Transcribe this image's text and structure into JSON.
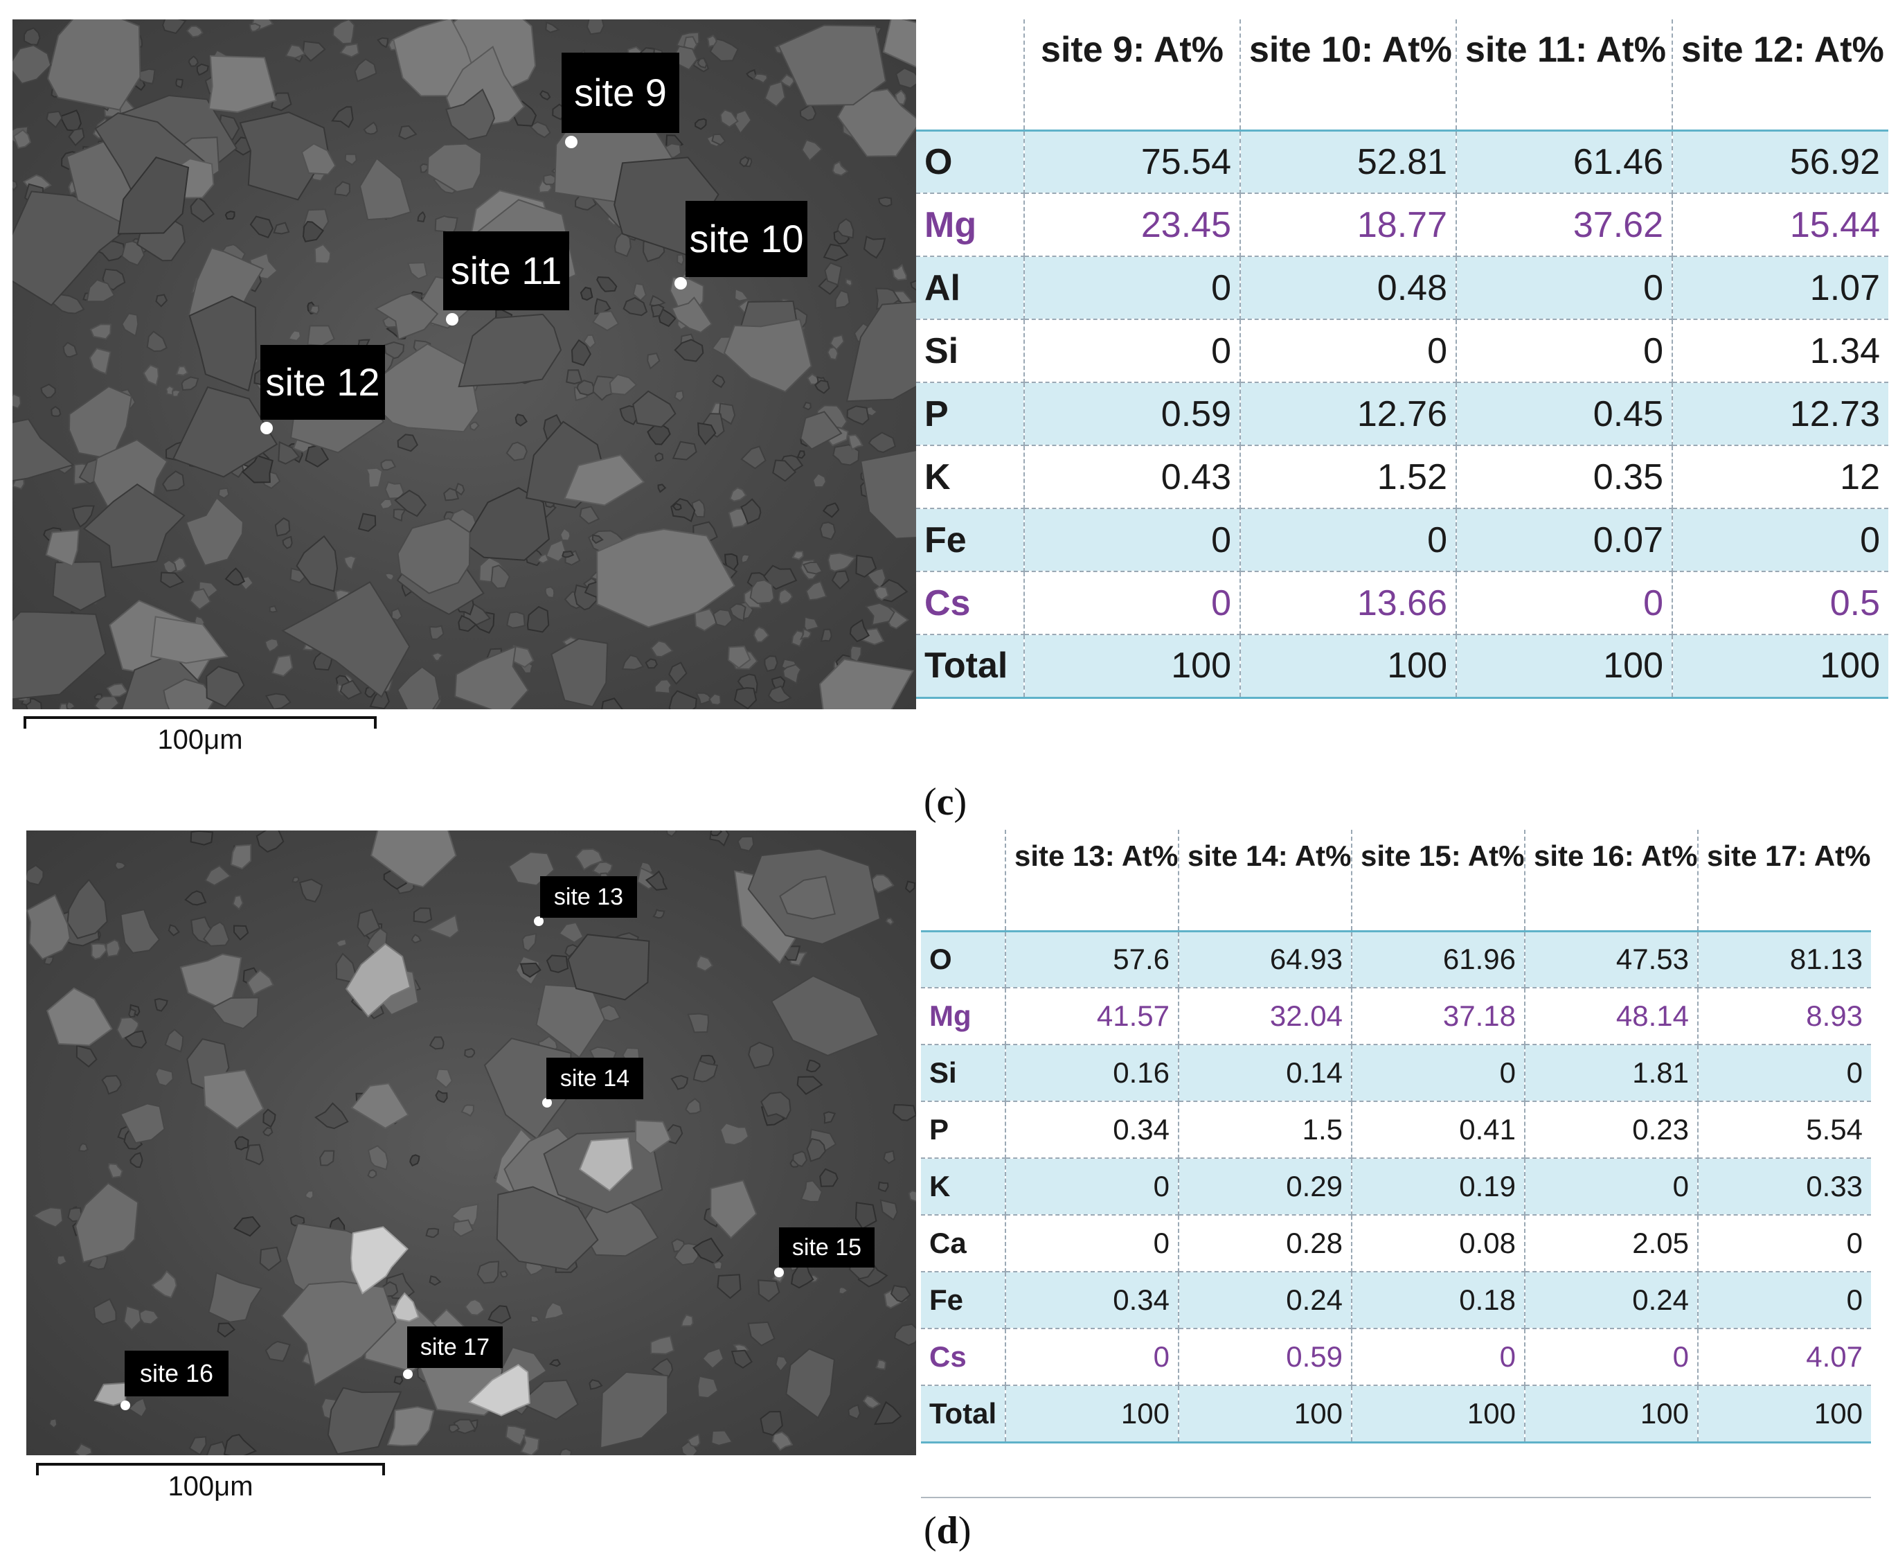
{
  "panel_c": {
    "label": "c",
    "scale_bar": "100μm",
    "sites": [
      "site 9",
      "site 10",
      "site 11",
      "site 12"
    ],
    "table": {
      "columns": [
        "",
        "site 9: At%",
        "site 10: At%",
        "site 11: At%",
        "site 12: At%"
      ],
      "rows": [
        {
          "element": "O",
          "values": [
            "75.54",
            "52.81",
            "61.46",
            "56.92"
          ]
        },
        {
          "element": "Mg",
          "values": [
            "23.45",
            "18.77",
            "37.62",
            "15.44"
          ]
        },
        {
          "element": "Al",
          "values": [
            "0",
            "0.48",
            "0",
            "1.07"
          ]
        },
        {
          "element": "Si",
          "values": [
            "0",
            "0",
            "0",
            "1.34"
          ]
        },
        {
          "element": "P",
          "values": [
            "0.59",
            "12.76",
            "0.45",
            "12.73"
          ]
        },
        {
          "element": "K",
          "values": [
            "0.43",
            "1.52",
            "0.35",
            "12"
          ]
        },
        {
          "element": "Fe",
          "values": [
            "0",
            "0",
            "0.07",
            "0"
          ]
        },
        {
          "element": "Cs",
          "values": [
            "0",
            "13.66",
            "0",
            "0.5"
          ]
        },
        {
          "element": "Total",
          "values": [
            "100",
            "100",
            "100",
            "100"
          ]
        }
      ]
    }
  },
  "panel_d": {
    "label": "d",
    "scale_bar": "100μm",
    "sites": [
      "site 13",
      "site 14",
      "site 15",
      "site 16",
      "site 17"
    ],
    "table": {
      "columns": [
        "",
        "site 13: At%",
        "site 14: At%",
        "site 15: At%",
        "site 16: At%",
        "site 17: At%"
      ],
      "rows": [
        {
          "element": "O",
          "values": [
            "57.6",
            "64.93",
            "61.96",
            "47.53",
            "81.13"
          ]
        },
        {
          "element": "Mg",
          "values": [
            "41.57",
            "32.04",
            "37.18",
            "48.14",
            "8.93"
          ]
        },
        {
          "element": "Si",
          "values": [
            "0.16",
            "0.14",
            "0",
            "1.81",
            "0"
          ]
        },
        {
          "element": "P",
          "values": [
            "0.34",
            "1.5",
            "0.41",
            "0.23",
            "5.54"
          ]
        },
        {
          "element": "K",
          "values": [
            "0",
            "0.29",
            "0.19",
            "0",
            "0.33"
          ]
        },
        {
          "element": "Ca",
          "values": [
            "0",
            "0.28",
            "0.08",
            "2.05",
            "0"
          ]
        },
        {
          "element": "Fe",
          "values": [
            "0.34",
            "0.24",
            "0.18",
            "0.24",
            "0"
          ]
        },
        {
          "element": "Cs",
          "values": [
            "0",
            "0.59",
            "0",
            "0",
            "4.07"
          ]
        },
        {
          "element": "Total",
          "values": [
            "100",
            "100",
            "100",
            "100",
            "100"
          ]
        }
      ]
    }
  },
  "colors": {
    "row_band": "#d4ecf3",
    "highlight_text": "#7b3f98",
    "label_bg": "#000000"
  }
}
